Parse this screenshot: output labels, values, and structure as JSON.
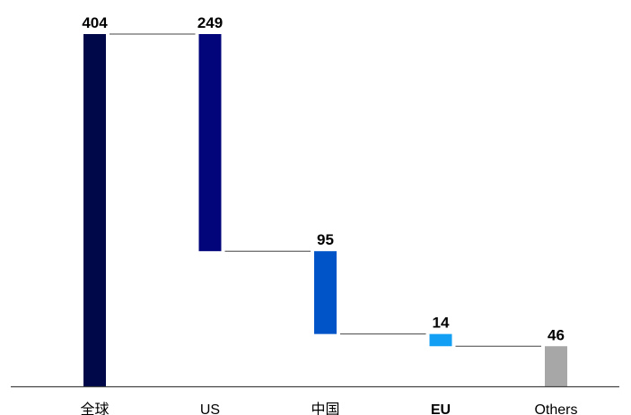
{
  "chart_data": {
    "type": "bar",
    "subtype": "waterfall",
    "categories": [
      "全球",
      "US",
      "中国",
      "EU",
      "Others"
    ],
    "values": [
      404,
      249,
      95,
      14,
      46
    ],
    "bold_categories": [
      "EU"
    ],
    "colors": [
      "#00084a",
      "#010579",
      "#0054c8",
      "#139ff4",
      "#a7a7a7"
    ],
    "ylim": [
      0,
      404
    ],
    "grid": false,
    "legend": false,
    "title": "",
    "xlabel": "",
    "ylabel": ""
  }
}
